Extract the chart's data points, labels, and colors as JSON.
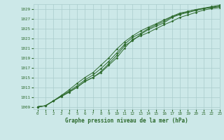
{
  "title": "Graphe pression niveau de la mer (hPa)",
  "bg_color": "#cce8e8",
  "grid_color": "#aacccc",
  "line_color": "#2d6a2d",
  "xlim": [
    -0.5,
    23
  ],
  "ylim": [
    1008.5,
    1030
  ],
  "yticks": [
    1009,
    1011,
    1013,
    1015,
    1017,
    1019,
    1021,
    1023,
    1025,
    1027,
    1029
  ],
  "xticks": [
    0,
    1,
    2,
    3,
    4,
    5,
    6,
    7,
    8,
    9,
    10,
    11,
    12,
    13,
    14,
    15,
    16,
    17,
    18,
    19,
    20,
    21,
    22,
    23
  ],
  "lines": [
    [
      1009.0,
      1009.2,
      1010.2,
      1011.1,
      1012.0,
      1013.0,
      1014.2,
      1015.0,
      1016.0,
      1017.5,
      1019.0,
      1021.0,
      1022.8,
      1023.5,
      1024.2,
      1025.0,
      1025.8,
      1026.5,
      1027.3,
      1027.8,
      1028.3,
      1028.8,
      1029.1,
      1029.3
    ],
    [
      1009.0,
      1009.2,
      1010.2,
      1011.1,
      1012.0,
      1013.0,
      1014.2,
      1015.0,
      1016.2,
      1017.8,
      1019.5,
      1021.5,
      1022.5,
      1023.8,
      1024.8,
      1025.5,
      1026.2,
      1027.3,
      1027.9,
      1028.3,
      1028.7,
      1029.1,
      1029.3,
      1029.5
    ],
    [
      1009.0,
      1009.2,
      1010.2,
      1011.3,
      1012.2,
      1013.3,
      1014.5,
      1015.5,
      1016.8,
      1018.3,
      1020.0,
      1021.8,
      1023.2,
      1024.0,
      1025.0,
      1025.8,
      1026.5,
      1027.5,
      1028.0,
      1028.5,
      1028.9,
      1029.1,
      1029.4,
      1029.6
    ],
    [
      1009.0,
      1009.2,
      1010.2,
      1011.3,
      1012.5,
      1013.8,
      1015.0,
      1016.0,
      1017.5,
      1019.0,
      1020.8,
      1022.3,
      1023.5,
      1024.5,
      1025.3,
      1026.0,
      1026.8,
      1027.5,
      1028.2,
      1028.5,
      1028.9,
      1029.2,
      1029.5,
      1029.8
    ]
  ]
}
